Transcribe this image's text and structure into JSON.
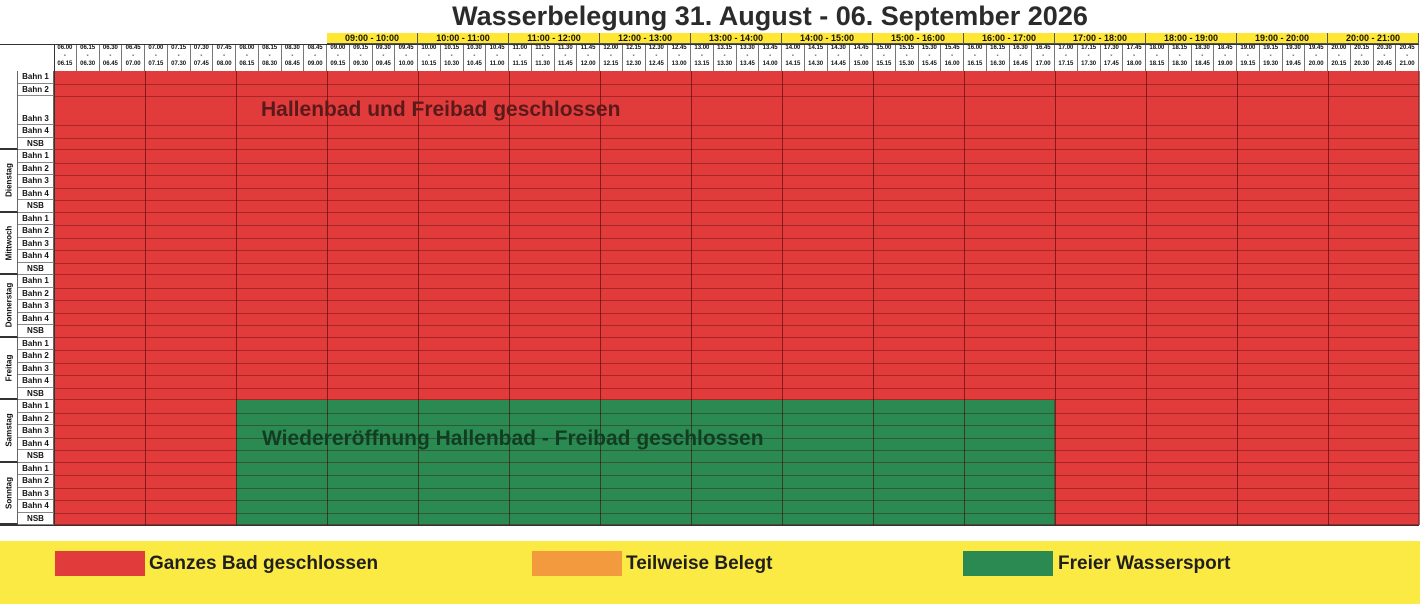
{
  "title": "Wasserbelegung 31. August - 06. September 2026",
  "hours": [
    "09:00 - 10:00",
    "10:00 - 11:00",
    "11:00 - 12:00",
    "12:00 - 13:00",
    "13:00 - 14:00",
    "14:00 - 15:00",
    "15:00 - 16:00",
    "16:00 - 17:00",
    "17:00 - 18:00",
    "18:00 - 19:00",
    "19:00 - 20:00",
    "20:00 - 21:00"
  ],
  "slot_starts": [
    "06.00",
    "06.15",
    "06.30",
    "06.45",
    "07.00",
    "07.15",
    "07.30",
    "07.45",
    "08.00",
    "08.15",
    "08.30",
    "08.45",
    "09.00",
    "09.15",
    "09.30",
    "09.45",
    "10.00",
    "10.15",
    "10.30",
    "10.45",
    "11.00",
    "11.15",
    "11.30",
    "11.45",
    "12.00",
    "12.15",
    "12.30",
    "12.45",
    "13.00",
    "13.15",
    "13.30",
    "13.45",
    "14.00",
    "14.15",
    "14.30",
    "14.45",
    "15.00",
    "15.15",
    "15.30",
    "15.45",
    "16.00",
    "16.15",
    "16.30",
    "16.45",
    "17.00",
    "17.15",
    "17.30",
    "17.45",
    "18.00",
    "18.15",
    "18.30",
    "18.45",
    "19.00",
    "19.15",
    "19.30",
    "19.45",
    "20.00",
    "20.15",
    "20.30",
    "20.45"
  ],
  "slot_ends": [
    "06.15",
    "06.30",
    "06.45",
    "07.00",
    "07.15",
    "07.30",
    "07.45",
    "08.00",
    "08.15",
    "08.30",
    "08.45",
    "09.00",
    "09.15",
    "09.30",
    "09.45",
    "10.00",
    "10.15",
    "10.30",
    "10.45",
    "11.00",
    "11.15",
    "11.30",
    "11.45",
    "12.00",
    "12.15",
    "12.30",
    "12.45",
    "13.00",
    "13.15",
    "13.30",
    "13.45",
    "14.00",
    "14.15",
    "14.30",
    "14.45",
    "15.00",
    "15.15",
    "15.30",
    "15.45",
    "16.00",
    "16.15",
    "16.30",
    "16.45",
    "17.00",
    "17.15",
    "17.30",
    "17.45",
    "18.00",
    "18.15",
    "18.30",
    "18.45",
    "19.00",
    "19.15",
    "19.30",
    "19.45",
    "20.00",
    "20.15",
    "20.30",
    "20.45",
    "21.00"
  ],
  "slot_separator": "-",
  "lanes": [
    "Bahn 1",
    "Bahn 2",
    "Bahn 3",
    "Bahn 4",
    "NSB"
  ],
  "days": [
    {
      "label": "",
      "green_from": null
    },
    {
      "label": "Dienstag",
      "green_from": null
    },
    {
      "label": "Mittwoch",
      "green_from": null
    },
    {
      "label": "Donnerstag",
      "green_from": null
    },
    {
      "label": "Freitag",
      "green_from": null
    },
    {
      "label": "Samstag",
      "green_from": "08.00",
      "green_to": "17.00"
    },
    {
      "label": "Sonntag",
      "green_from": "08.00",
      "green_to": "17.00"
    }
  ],
  "notices": {
    "closed": "Hallenbad und Freibad geschlossen",
    "reopening": "Wiedereröffnung Hallenbad - Freibad geschlossen"
  },
  "legend": [
    {
      "label": "Ganzes Bad geschlossen",
      "color": "#e23b3b"
    },
    {
      "label": "Teilweise Belegt",
      "color": "#f39a3e"
    },
    {
      "label": "Freier Wassersport",
      "color": "#2a8a52"
    }
  ],
  "colors": {
    "closed": "#e23b3b",
    "open": "#2a8a52",
    "header": "#ffe733",
    "legend_bg": "#fbe944"
  }
}
